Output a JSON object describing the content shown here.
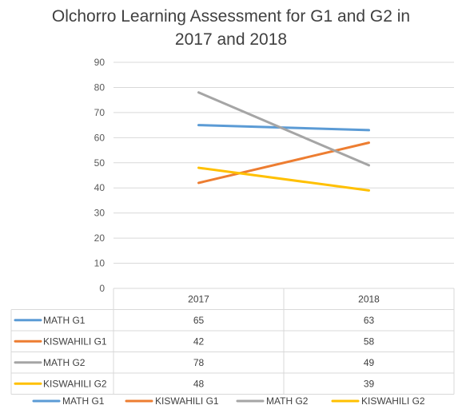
{
  "chart_data": {
    "type": "line",
    "title": [
      "Olchorro Learning Assessment for G1 and G2 in",
      "2017 and 2018"
    ],
    "categories": [
      "2017",
      "2018"
    ],
    "ylim": [
      0,
      90
    ],
    "yticks": [
      "0",
      "10",
      "20",
      "30",
      "40",
      "50",
      "60",
      "70",
      "80",
      "90"
    ],
    "grid": true,
    "legend_position": "bottom",
    "data_table": true,
    "series": [
      {
        "name": "MATH G1",
        "color": "#5B9BD5",
        "values": [
          65,
          63
        ]
      },
      {
        "name": "KISWAHILI G1",
        "color": "#ED7D31",
        "values": [
          42,
          58
        ]
      },
      {
        "name": "MATH G2",
        "color": "#A5A5A5",
        "values": [
          78,
          49
        ]
      },
      {
        "name": "KISWAHILI G2",
        "color": "#FFC000",
        "values": [
          48,
          39
        ]
      }
    ]
  }
}
